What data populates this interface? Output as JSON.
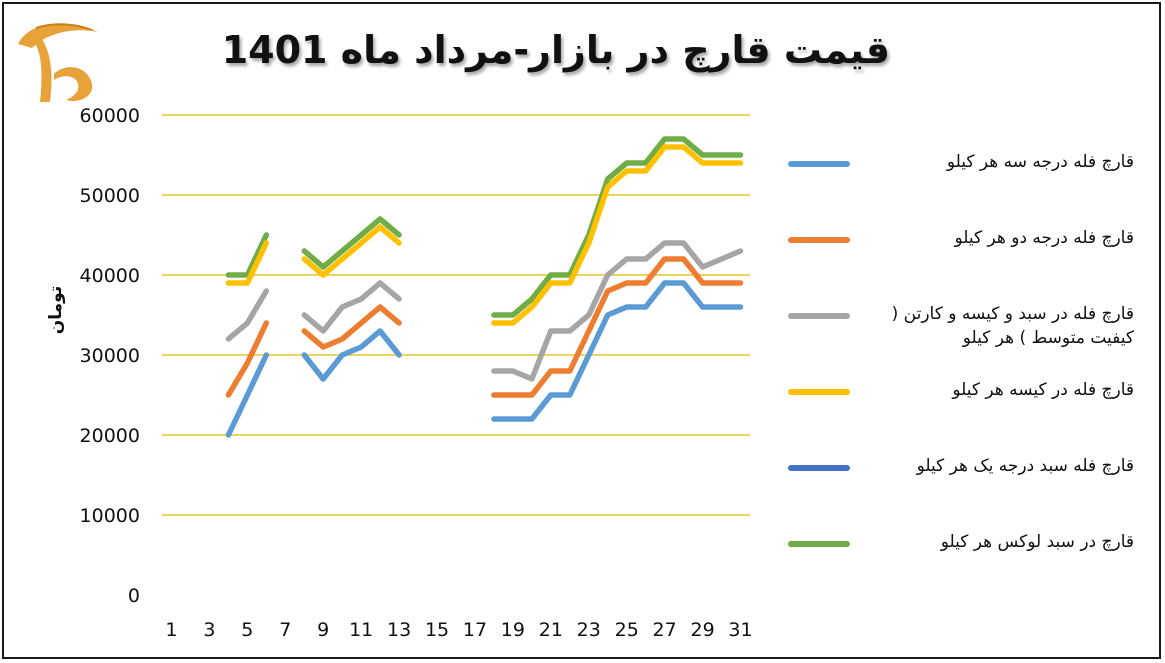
{
  "title": "قیمت قارچ در بازار-مرداد ماه 1401",
  "logo_icon": "mushroom-logo-icon",
  "colors": {
    "grid": "#e6b800",
    "s1": "#5b9bd5",
    "s2": "#ed7d31",
    "s3": "#a5a5a5",
    "s4": "#ffc000",
    "s5": "#4472c4",
    "s6": "#70ad47"
  },
  "chart_data": {
    "type": "line",
    "title": "قیمت قارچ در بازار-مرداد ماه 1401",
    "xlabel": "",
    "ylabel": "تومان",
    "ylim": [
      0,
      60000
    ],
    "xlim": [
      0,
      31
    ],
    "grid": true,
    "legend_position": "right",
    "x_ticks": [
      1,
      3,
      5,
      7,
      9,
      11,
      13,
      15,
      17,
      19,
      21,
      23,
      25,
      27,
      29,
      31
    ],
    "y_ticks": [
      0,
      10000,
      20000,
      30000,
      40000,
      50000,
      60000
    ],
    "series": [
      {
        "name": "قارچ فله درجه سه هر کیلو",
        "segments": [
          [
            [
              4,
              20000
            ],
            [
              5,
              25000
            ],
            [
              6,
              30000
            ]
          ],
          [
            [
              8,
              30000
            ],
            [
              9,
              27000
            ],
            [
              10,
              30000
            ],
            [
              11,
              31000
            ],
            [
              12,
              33000
            ],
            [
              13,
              30000
            ]
          ],
          [
            [
              18,
              22000
            ],
            [
              19,
              22000
            ],
            [
              20,
              22000
            ],
            [
              21,
              25000
            ],
            [
              22,
              25000
            ],
            [
              23,
              30000
            ],
            [
              24,
              35000
            ],
            [
              25,
              36000
            ],
            [
              26,
              36000
            ],
            [
              27,
              39000
            ],
            [
              28,
              39000
            ],
            [
              29,
              36000
            ],
            [
              30,
              36000
            ],
            [
              31,
              36000
            ]
          ]
        ]
      },
      {
        "name": "قارچ فله درجه دو هر کیلو",
        "segments": [
          [
            [
              4,
              25000
            ],
            [
              5,
              29000
            ],
            [
              6,
              34000
            ]
          ],
          [
            [
              8,
              33000
            ],
            [
              9,
              31000
            ],
            [
              10,
              32000
            ],
            [
              11,
              34000
            ],
            [
              12,
              36000
            ],
            [
              13,
              34000
            ]
          ],
          [
            [
              18,
              25000
            ],
            [
              19,
              25000
            ],
            [
              20,
              25000
            ],
            [
              21,
              28000
            ],
            [
              22,
              28000
            ],
            [
              23,
              33000
            ],
            [
              24,
              38000
            ],
            [
              25,
              39000
            ],
            [
              26,
              39000
            ],
            [
              27,
              42000
            ],
            [
              28,
              42000
            ],
            [
              29,
              39000
            ],
            [
              30,
              39000
            ],
            [
              31,
              39000
            ]
          ]
        ]
      },
      {
        "name": "قارچ فله در سبد و کیسه و کارتن ( کیفیت متوسط ) هر کیلو",
        "segments": [
          [
            [
              4,
              32000
            ],
            [
              5,
              34000
            ],
            [
              6,
              38000
            ]
          ],
          [
            [
              8,
              35000
            ],
            [
              9,
              33000
            ],
            [
              10,
              36000
            ],
            [
              11,
              37000
            ],
            [
              12,
              39000
            ],
            [
              13,
              37000
            ]
          ],
          [
            [
              18,
              28000
            ],
            [
              19,
              28000
            ],
            [
              20,
              27000
            ],
            [
              21,
              33000
            ],
            [
              22,
              33000
            ],
            [
              23,
              35000
            ],
            [
              24,
              40000
            ],
            [
              25,
              42000
            ],
            [
              26,
              42000
            ],
            [
              27,
              44000
            ],
            [
              28,
              44000
            ],
            [
              29,
              41000
            ],
            [
              30,
              42000
            ],
            [
              31,
              43000
            ]
          ]
        ]
      },
      {
        "name": "قارچ فله در کیسه هر کیلو",
        "segments": [
          [
            [
              4,
              39000
            ],
            [
              5,
              39000
            ],
            [
              6,
              44000
            ]
          ],
          [
            [
              8,
              42000
            ],
            [
              9,
              40000
            ],
            [
              10,
              42000
            ],
            [
              11,
              44000
            ],
            [
              12,
              46000
            ],
            [
              13,
              44000
            ]
          ],
          [
            [
              18,
              34000
            ],
            [
              19,
              34000
            ],
            [
              20,
              36000
            ],
            [
              21,
              39000
            ],
            [
              22,
              39000
            ],
            [
              23,
              44000
            ],
            [
              24,
              51000
            ],
            [
              25,
              53000
            ],
            [
              26,
              53000
            ],
            [
              27,
              56000
            ],
            [
              28,
              56000
            ],
            [
              29,
              54000
            ],
            [
              30,
              54000
            ],
            [
              31,
              54000
            ]
          ]
        ]
      },
      {
        "name": "قارچ فله سبد درجه یک هر کیلو",
        "segments": []
      },
      {
        "name": "قارچ در سبد لوکس هر کیلو",
        "segments": [
          [
            [
              4,
              40000
            ],
            [
              5,
              40000
            ],
            [
              6,
              45000
            ]
          ],
          [
            [
              8,
              43000
            ],
            [
              9,
              41000
            ],
            [
              10,
              43000
            ],
            [
              11,
              45000
            ],
            [
              12,
              47000
            ],
            [
              13,
              45000
            ]
          ],
          [
            [
              18,
              35000
            ],
            [
              19,
              35000
            ],
            [
              20,
              37000
            ],
            [
              21,
              40000
            ],
            [
              22,
              40000
            ],
            [
              23,
              45000
            ],
            [
              24,
              52000
            ],
            [
              25,
              54000
            ],
            [
              26,
              54000
            ],
            [
              27,
              57000
            ],
            [
              28,
              57000
            ],
            [
              29,
              55000
            ],
            [
              30,
              55000
            ],
            [
              31,
              55000
            ]
          ]
        ]
      }
    ]
  }
}
